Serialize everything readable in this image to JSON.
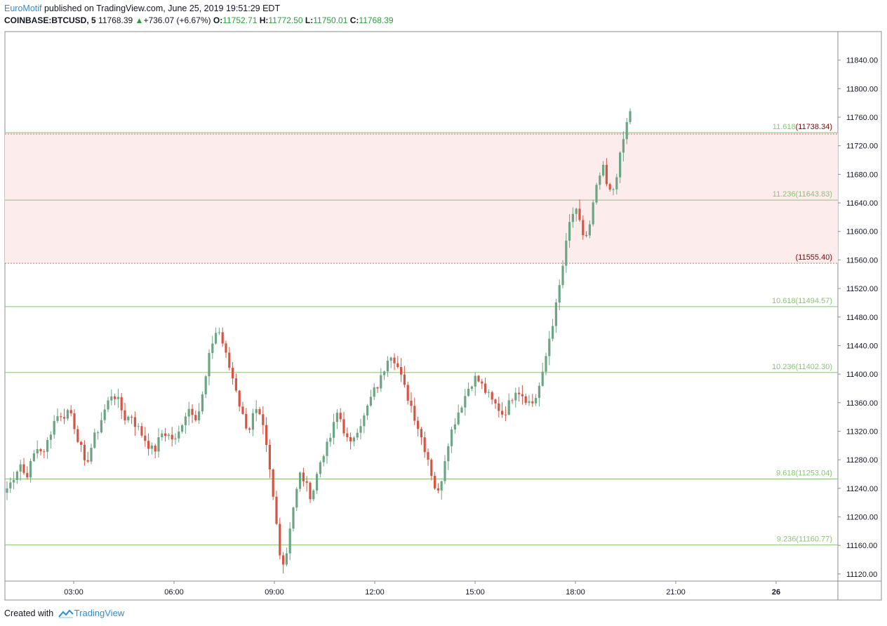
{
  "header": {
    "author": "EuroMotif",
    "published_text": " published on TradingView.com, June 25, 2019 19:51:29 EDT",
    "symbol": "COINBASE:BTCUSD, 5",
    "last": "11768.39",
    "change": "+736.07 (+6.67%)",
    "o_label": "O:",
    "o_value": "11752.71",
    "h_label": "H:",
    "h_value": "11772.50",
    "l_label": "L:",
    "l_value": "11750.01",
    "c_label": "C:",
    "c_value": "11768.39"
  },
  "footer": {
    "created_with": "Created with",
    "brand": "TradingView"
  },
  "colors": {
    "up": "#6ba583",
    "down": "#d75442",
    "level_line": "#8cc276",
    "level_text": "#8cc276",
    "zone_fill": "#fcecec",
    "zone_line": "#d96b6b",
    "zone_text": "#8b0000",
    "axis_text": "#131722"
  },
  "chart_data": {
    "type": "candlestick",
    "title": "",
    "x_ticks": [
      "03:00",
      "06:00",
      "09:00",
      "12:00",
      "15:00",
      "18:00",
      "21:00",
      "26"
    ],
    "y_ticks": [
      "11120.00",
      "11160.00",
      "11200.00",
      "11240.00",
      "11280.00",
      "11320.00",
      "11360.00",
      "11400.00",
      "11440.00",
      "11480.00",
      "11520.00",
      "11560.00",
      "11600.00",
      "11640.00",
      "11680.00",
      "11720.00",
      "11760.00",
      "11800.00",
      "11840.00"
    ],
    "ylim": [
      11110,
      11880
    ],
    "levels": [
      {
        "name": "11.618",
        "value": 11738.34,
        "label": "11.618",
        "price_label": "(11738.34)"
      },
      {
        "name": "11.236",
        "value": 11643.83,
        "label": "11.236",
        "price_label": "(11643.83)"
      },
      {
        "name": "zone_bottom",
        "value": 11555.4,
        "label": "",
        "price_label": "(11555.40)"
      },
      {
        "name": "10.618",
        "value": 11494.57,
        "label": "10.618",
        "price_label": "(11494.57)"
      },
      {
        "name": "10.236",
        "value": 11402.3,
        "label": "10.236",
        "price_label": "(11402.30)"
      },
      {
        "name": "9.618",
        "value": 11253.04,
        "label": "9.618",
        "price_label": "(11253.04)"
      },
      {
        "name": "9.236",
        "value": 11160.77,
        "label": "9.236",
        "price_label": "(11160.77)"
      }
    ],
    "zone": {
      "top": 11738.34,
      "bottom": 11555.4
    },
    "series": [
      {
        "close_path": [
          11240,
          11250,
          11265,
          11275,
          11255,
          11270,
          11290,
          11300,
          11285,
          11310,
          11330,
          11345,
          11335,
          11350,
          11345,
          11320,
          11300,
          11270,
          11290,
          11310,
          11325,
          11345,
          11360,
          11375,
          11365,
          11350,
          11335,
          11345,
          11330,
          11320,
          11310,
          11300,
          11290,
          11305,
          11320,
          11315,
          11310,
          11305,
          11330,
          11345,
          11355,
          11340,
          11350,
          11380,
          11420,
          11450,
          11465,
          11445,
          11420,
          11400,
          11380,
          11350,
          11330,
          11325,
          11350,
          11340,
          11320,
          11280,
          11230,
          11180,
          11130,
          11150,
          11200,
          11230,
          11260,
          11250,
          11230,
          11240,
          11270,
          11290,
          11300,
          11320,
          11345,
          11335,
          11310,
          11300,
          11320,
          11330,
          11340,
          11360,
          11375,
          11385,
          11400,
          11425,
          11430,
          11415,
          11395,
          11375,
          11360,
          11340,
          11320,
          11300,
          11280,
          11250,
          11230,
          11260,
          11300,
          11320,
          11340,
          11355,
          11370,
          11385,
          11395,
          11390,
          11380,
          11370,
          11360,
          11355,
          11345,
          11350,
          11365,
          11380,
          11375,
          11368,
          11360,
          11360,
          11380,
          11400,
          11440,
          11470,
          11500,
          11540,
          11580,
          11620,
          11630,
          11610,
          11590,
          11600,
          11640,
          11670,
          11690,
          11660,
          11650,
          11680,
          11710,
          11745,
          11768
        ]
      }
    ]
  }
}
